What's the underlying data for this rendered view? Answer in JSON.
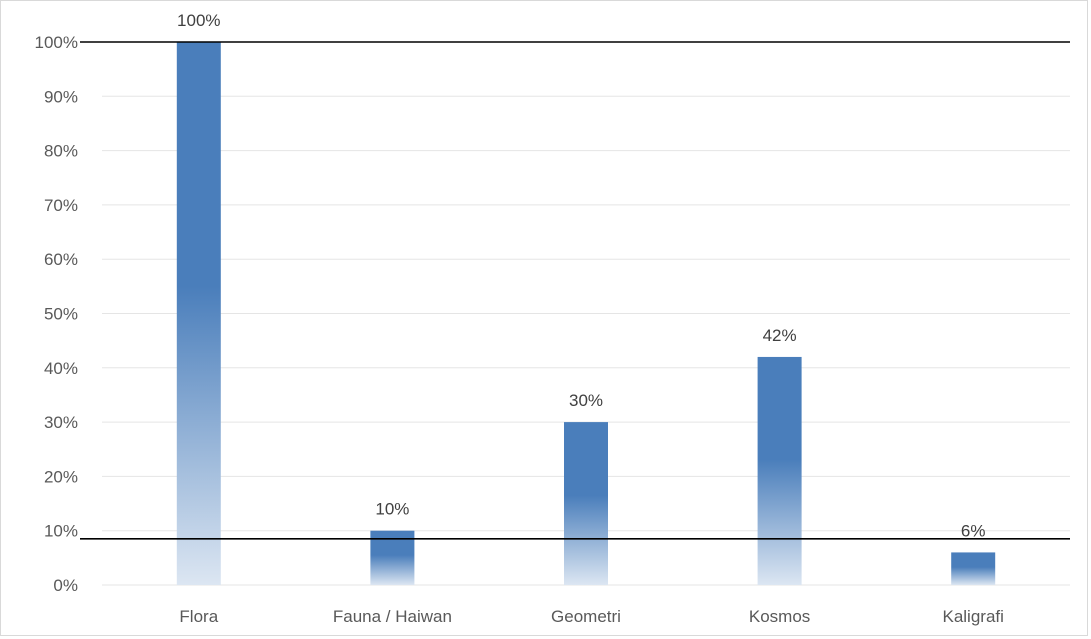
{
  "chart_data": {
    "type": "bar",
    "categories": [
      "Flora",
      "Fauna / Haiwan",
      "Geometri",
      "Kosmos",
      "Kaligrafi"
    ],
    "values": [
      100,
      10,
      30,
      42,
      6
    ],
    "data_labels": [
      "100%",
      "10%",
      "30%",
      "42%",
      "6%"
    ],
    "yticks": [
      "0%",
      "10%",
      "20%",
      "30%",
      "40%",
      "50%",
      "60%",
      "70%",
      "80%",
      "90%",
      "100%"
    ],
    "ylim": [
      0,
      100
    ],
    "grid": true,
    "bar_color": "#4a7ebb",
    "bar_fade_color": "#dce6f2",
    "reference_lines": [
      100,
      8.5
    ],
    "title": "",
    "xlabel": "",
    "ylabel": ""
  }
}
